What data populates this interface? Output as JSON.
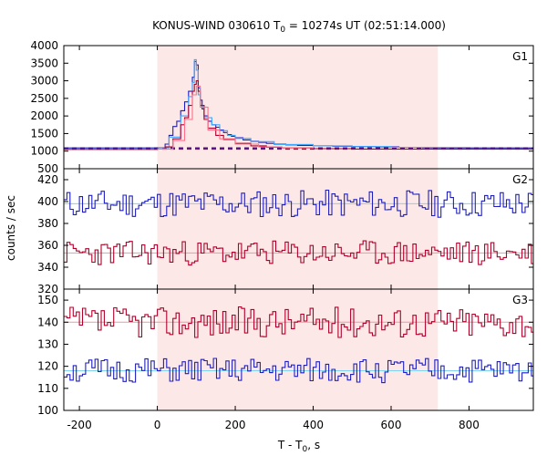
{
  "chart_data": {
    "type": "line",
    "title": "KONUS-WIND 030610 T",
    "title_sub": "0",
    "title_rest": " = 10274s UT (02:51:14.000)",
    "xlabel": "T - T",
    "xlabel_sub": "0",
    "xlabel_rest": ", s",
    "ylabel": "counts / sec",
    "xlim": [
      -240,
      965
    ],
    "x_ticks": [
      -200,
      0,
      200,
      400,
      600,
      800
    ],
    "x_tick_labels": [
      "-200",
      "0",
      "200",
      "400",
      "600",
      "800"
    ],
    "shaded_interval": [
      0,
      720
    ],
    "shade_color": "#fde8e8",
    "colors": {
      "blue": "#1f1fbf",
      "light_blue": "#3fa9ff",
      "red": "#b0002a",
      "pink": "#ff6f8a",
      "cyan": "#7fd3f0",
      "rose": "#e89aa6"
    },
    "panels": [
      {
        "label": "G1",
        "ylim": [
          500,
          4000
        ],
        "y_ticks": [
          500,
          1000,
          1500,
          2000,
          2500,
          3000,
          3500,
          4000
        ],
        "y_tick_labels": [
          "500",
          "1000",
          "1500",
          "2000",
          "2500",
          "3000",
          "3500",
          "4000"
        ],
        "background_levels": [
          {
            "series": "blue",
            "value": 1090
          },
          {
            "series": "red",
            "value": 1060
          }
        ],
        "series": [
          {
            "color_key": "blue",
            "x": [
              -240,
              0,
              20,
              30,
              40,
              50,
              60,
              70,
              80,
              90,
              95,
              100,
              105,
              110,
              115,
              120,
              130,
              140,
              150,
              160,
              170,
              180,
              190,
              200,
              220,
              240,
              260,
              280,
              300,
              330,
              360,
              400,
              450,
              500,
              560,
              620,
              680,
              720,
              800,
              880,
              965
            ],
            "y": [
              1090,
              1100,
              1200,
              1450,
              1700,
              1850,
              2150,
              2400,
              2700,
              3100,
              3550,
              3450,
              2800,
              2450,
              2200,
              2000,
              1850,
              1750,
              1680,
              1600,
              1530,
              1470,
              1420,
              1380,
              1320,
              1280,
              1250,
              1220,
              1200,
              1180,
              1160,
              1150,
              1140,
              1130,
              1120,
              1110,
              1100,
              1095,
              1090,
              1090,
              1090
            ]
          },
          {
            "color_key": "light_blue",
            "x": [
              0,
              30,
              60,
              80,
              90,
              95,
              100,
              105,
              110,
              120,
              140,
              160,
              180,
              200,
              240,
              300,
              400,
              500,
              600,
              720
            ],
            "y": [
              1100,
              1400,
              2000,
              2550,
              2950,
              3600,
              3300,
              2600,
              2300,
              1950,
              1750,
              1580,
              1450,
              1360,
              1270,
              1190,
              1150,
              1130,
              1110,
              1095
            ]
          },
          {
            "color_key": "red",
            "x": [
              -240,
              0,
              20,
              40,
              60,
              70,
              80,
              90,
              95,
              100,
              105,
              110,
              120,
              130,
              150,
              170,
              200,
              240,
              280,
              320,
              400,
              500,
              720,
              965
            ],
            "y": [
              1050,
              1060,
              1120,
              1350,
              1750,
              1950,
              2300,
              2700,
              2900,
              3000,
              2700,
              2300,
              1900,
              1650,
              1450,
              1330,
              1220,
              1150,
              1110,
              1090,
              1070,
              1060,
              1060,
              1055
            ]
          },
          {
            "color_key": "pink",
            "x": [
              0,
              40,
              70,
              90,
              100,
              110,
              130,
              160,
              200,
              260,
              320,
              400
            ],
            "y": [
              1060,
              1300,
              1900,
              2600,
              2850,
              2250,
              1600,
              1350,
              1200,
              1120,
              1090,
              1070
            ]
          }
        ]
      },
      {
        "label": "G2",
        "ylim": [
          320,
          430
        ],
        "y_ticks": [
          320,
          340,
          360,
          380,
          400,
          420
        ],
        "y_tick_labels": [
          "320",
          "340",
          "360",
          "380",
          "400",
          "420"
        ],
        "background_levels": [
          {
            "series": "cyan",
            "value": 398
          },
          {
            "series": "rose",
            "value": 353
          }
        ],
        "series": [
          {
            "color_key": "blue",
            "mean": 398,
            "noise": 9,
            "seed": 11
          },
          {
            "color_key": "red",
            "mean": 353,
            "noise": 8,
            "seed": 23
          }
        ]
      },
      {
        "label": "G3",
        "ylim": [
          100,
          155
        ],
        "y_ticks": [
          100,
          110,
          120,
          130,
          140,
          150
        ],
        "y_tick_labels": [
          "100",
          "110",
          "120",
          "130",
          "140",
          "150"
        ],
        "background_levels": [
          {
            "series": "cyan",
            "value": 118
          },
          {
            "series": "rose",
            "value": 140
          }
        ],
        "series": [
          {
            "color_key": "red",
            "mean": 140,
            "noise": 5,
            "seed": 37
          },
          {
            "color_key": "blue",
            "mean": 118,
            "noise": 4,
            "seed": 51
          }
        ]
      }
    ]
  }
}
